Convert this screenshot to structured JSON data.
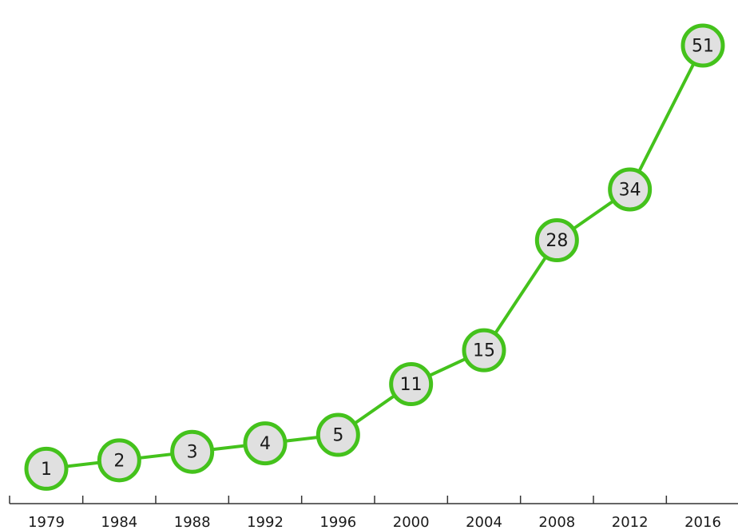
{
  "chart_data": {
    "type": "line",
    "title": "",
    "xlabel": "",
    "ylabel": "",
    "categories": [
      "1979",
      "1984",
      "1988",
      "1992",
      "1996",
      "2000",
      "2004",
      "2008",
      "2012",
      "2016"
    ],
    "values": [
      1,
      2,
      3,
      4,
      5,
      11,
      15,
      28,
      34,
      51
    ],
    "data_labels": [
      "1",
      "2",
      "3",
      "4",
      "5",
      "11",
      "15",
      "28",
      "34",
      "51"
    ],
    "ylim": [
      0,
      51
    ],
    "grid": false,
    "legend": "none",
    "colors": {
      "line": "#44c21c",
      "marker_fill": "#e0e0e0",
      "text": "#1a1a1a",
      "axis": "#333333"
    }
  }
}
